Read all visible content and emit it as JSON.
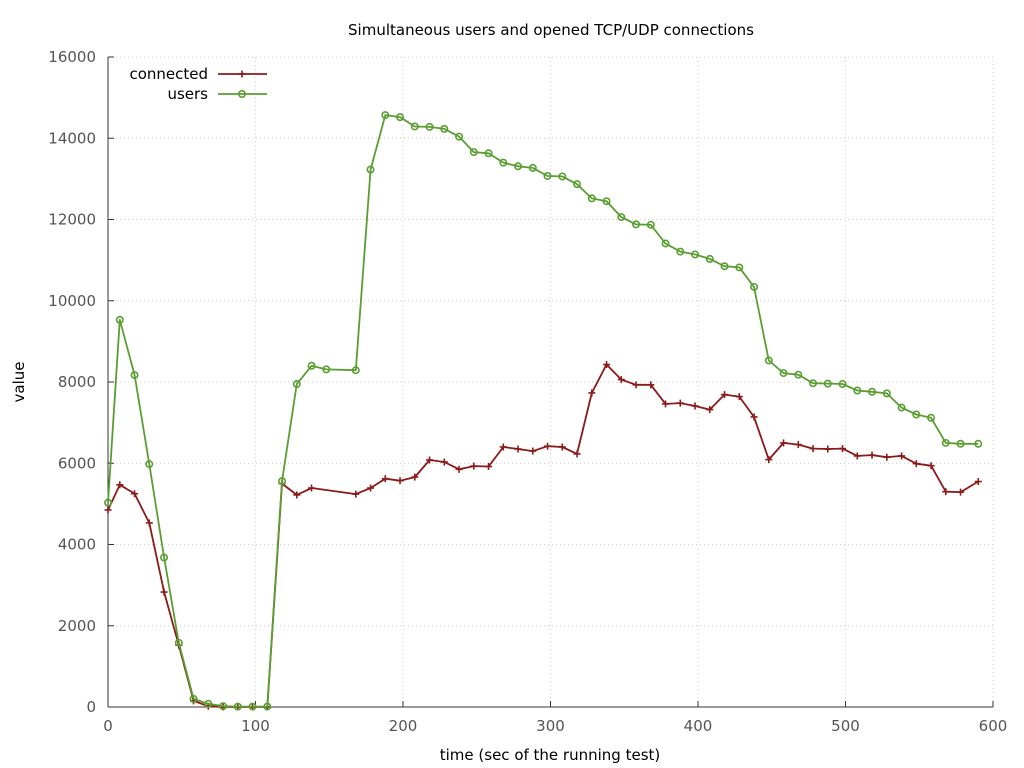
{
  "chart_data": {
    "type": "line",
    "title": "Simultaneous users and opened TCP/UDP connections",
    "xlabel": "time (sec of the running test)",
    "ylabel": "value",
    "xlim": [
      0,
      600
    ],
    "ylim": [
      0,
      16000
    ],
    "xticks": [
      0,
      100,
      200,
      300,
      400,
      500,
      600
    ],
    "yticks": [
      0,
      2000,
      4000,
      6000,
      8000,
      10000,
      12000,
      14000,
      16000
    ],
    "grid": true,
    "legend_position": "top-left",
    "series": [
      {
        "name": "connected",
        "color": "#8b1a1a",
        "marker": "plus",
        "x": [
          0,
          8,
          18,
          28,
          38,
          48,
          58,
          68,
          78,
          88,
          98,
          108,
          118,
          128,
          138,
          168,
          178,
          188,
          198,
          208,
          218,
          228,
          238,
          248,
          258,
          268,
          278,
          288,
          298,
          308,
          318,
          328,
          338,
          348,
          358,
          368,
          378,
          388,
          398,
          408,
          418,
          428,
          438,
          448,
          458,
          468,
          478,
          488,
          498,
          508,
          518,
          528,
          538,
          548,
          558,
          568,
          578,
          590
        ],
        "y": [
          4850,
          5470,
          5250,
          4530,
          2830,
          1520,
          150,
          20,
          0,
          0,
          0,
          0,
          5500,
          5220,
          5390,
          5240,
          5390,
          5620,
          5570,
          5660,
          6080,
          6030,
          5850,
          5930,
          5920,
          6400,
          6350,
          6300,
          6420,
          6400,
          6230,
          7730,
          8430,
          8060,
          7930,
          7930,
          7460,
          7480,
          7410,
          7320,
          7690,
          7640,
          7140,
          6090,
          6500,
          6460,
          6360,
          6350,
          6360,
          6180,
          6200,
          6150,
          6180,
          5990,
          5940,
          5300,
          5290,
          5550
        ]
      },
      {
        "name": "users",
        "color": "#5a9e32",
        "marker": "circle",
        "x": [
          0,
          8,
          18,
          28,
          38,
          48,
          58,
          68,
          78,
          88,
          98,
          108,
          118,
          128,
          138,
          148,
          168,
          178,
          188,
          198,
          208,
          218,
          228,
          238,
          248,
          258,
          268,
          278,
          288,
          298,
          308,
          318,
          328,
          338,
          348,
          358,
          368,
          378,
          388,
          398,
          408,
          418,
          428,
          438,
          448,
          458,
          468,
          478,
          488,
          498,
          508,
          518,
          528,
          538,
          548,
          558,
          568,
          578,
          590
        ],
        "y": [
          5030,
          9530,
          8170,
          5980,
          3680,
          1580,
          200,
          80,
          20,
          10,
          10,
          10,
          5560,
          7950,
          8400,
          8310,
          8290,
          13230,
          14570,
          14520,
          14290,
          14280,
          14230,
          14040,
          13660,
          13630,
          13400,
          13310,
          13270,
          13070,
          13060,
          12870,
          12520,
          12450,
          12060,
          11880,
          11870,
          11410,
          11210,
          11140,
          11030,
          10850,
          10820,
          10340,
          8530,
          8220,
          8180,
          7970,
          7960,
          7950,
          7790,
          7760,
          7720,
          7370,
          7200,
          7120,
          6500,
          6480,
          6480
        ]
      }
    ]
  }
}
